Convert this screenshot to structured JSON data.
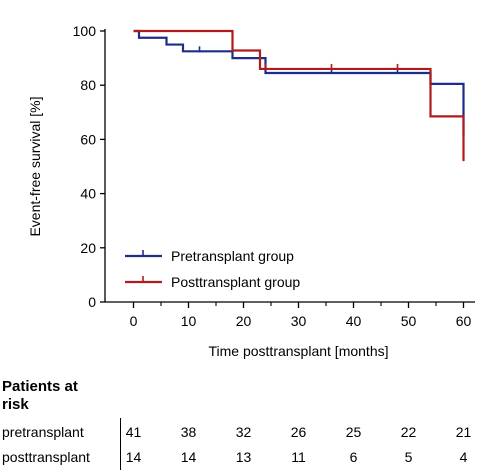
{
  "chart_data": {
    "type": "line",
    "ylabel": "Event-free survival [%]",
    "xlabel": "Time posttransplant [months]",
    "xlim": [
      -5,
      62
    ],
    "ylim": [
      0,
      100
    ],
    "x_ticks": [
      "0",
      "10",
      "20",
      "30",
      "40",
      "50",
      "60"
    ],
    "y_ticks": [
      "0",
      "20",
      "40",
      "60",
      "80",
      "100"
    ],
    "legend_position": "bottom-left",
    "series": [
      {
        "name": "Pretransplant group",
        "color": "#1f2d8a",
        "steps": [
          [
            0,
            100
          ],
          [
            1,
            97.5
          ],
          [
            6,
            95
          ],
          [
            9,
            92.5
          ],
          [
            18,
            90
          ],
          [
            24,
            84.5
          ],
          [
            54,
            84.5
          ],
          [
            54,
            80.5
          ],
          [
            60,
            80.5
          ],
          [
            60,
            61
          ]
        ],
        "censor_x": [
          12,
          24,
          36,
          48
        ]
      },
      {
        "name": "Posttransplant group",
        "color": "#b01c1c",
        "steps": [
          [
            0,
            100
          ],
          [
            18,
            100
          ],
          [
            18,
            92.8
          ],
          [
            23,
            92.8
          ],
          [
            23,
            86
          ],
          [
            54,
            86
          ],
          [
            54,
            68.5
          ],
          [
            60,
            68.5
          ],
          [
            60,
            52
          ]
        ],
        "censor_x": [
          24,
          36,
          48
        ]
      }
    ]
  },
  "risk_table": {
    "heading_line1": "Patients at",
    "heading_line2": "risk",
    "rows": [
      {
        "label": "pretransplant",
        "values": [
          "41",
          "38",
          "32",
          "26",
          "25",
          "22",
          "21"
        ]
      },
      {
        "label": "posttransplant",
        "values": [
          "14",
          "14",
          "13",
          "11",
          "6",
          "5",
          "4"
        ]
      }
    ]
  }
}
